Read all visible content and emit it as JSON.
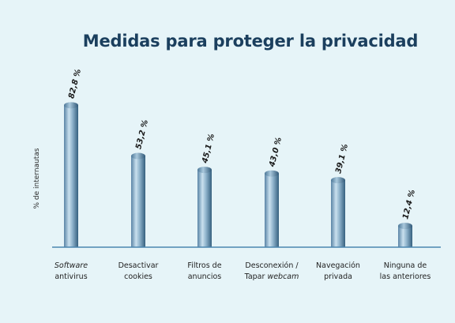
{
  "chart_data": {
    "type": "bar",
    "title": "Medidas para proteger la privacidad",
    "ylabel": "% de internautas",
    "xlabel": "",
    "ylim": [
      0,
      100
    ],
    "grid": false,
    "categories": [
      {
        "lines": [
          {
            "text": "Software",
            "italic": true
          },
          {
            "text": "antivirus",
            "italic": false
          }
        ]
      },
      {
        "lines": [
          {
            "text": "Desactivar",
            "italic": false
          },
          {
            "text": "cookies",
            "italic": false
          }
        ]
      },
      {
        "lines": [
          {
            "text": "Filtros de",
            "italic": false
          },
          {
            "text": "anuncios",
            "italic": false
          }
        ]
      },
      {
        "lines": [
          {
            "text": "Desconexión /",
            "italic": false
          },
          {
            "text": "Tapar ",
            "italic": false,
            "suffix": "webcam"
          }
        ]
      },
      {
        "lines": [
          {
            "text": "Navegación",
            "italic": false
          },
          {
            "text": "privada",
            "italic": false
          }
        ]
      },
      {
        "lines": [
          {
            "text": "Ninguna de",
            "italic": false
          },
          {
            "text": "las anteriores",
            "italic": false
          }
        ]
      }
    ],
    "values": [
      82.8,
      53.2,
      45.1,
      43.0,
      39.1,
      12.4
    ],
    "value_labels": [
      "82,8 %",
      "53,2 %",
      "45,1 %",
      "43,0 %",
      "39,1 %",
      "12,4 %"
    ],
    "colors": {
      "bar_light": "#c5dcea",
      "bar_mid": "#7fa6c2",
      "bar_dark": "#3f6a8c",
      "axis": "#4b86b0",
      "title": "#1b3f5e"
    }
  }
}
